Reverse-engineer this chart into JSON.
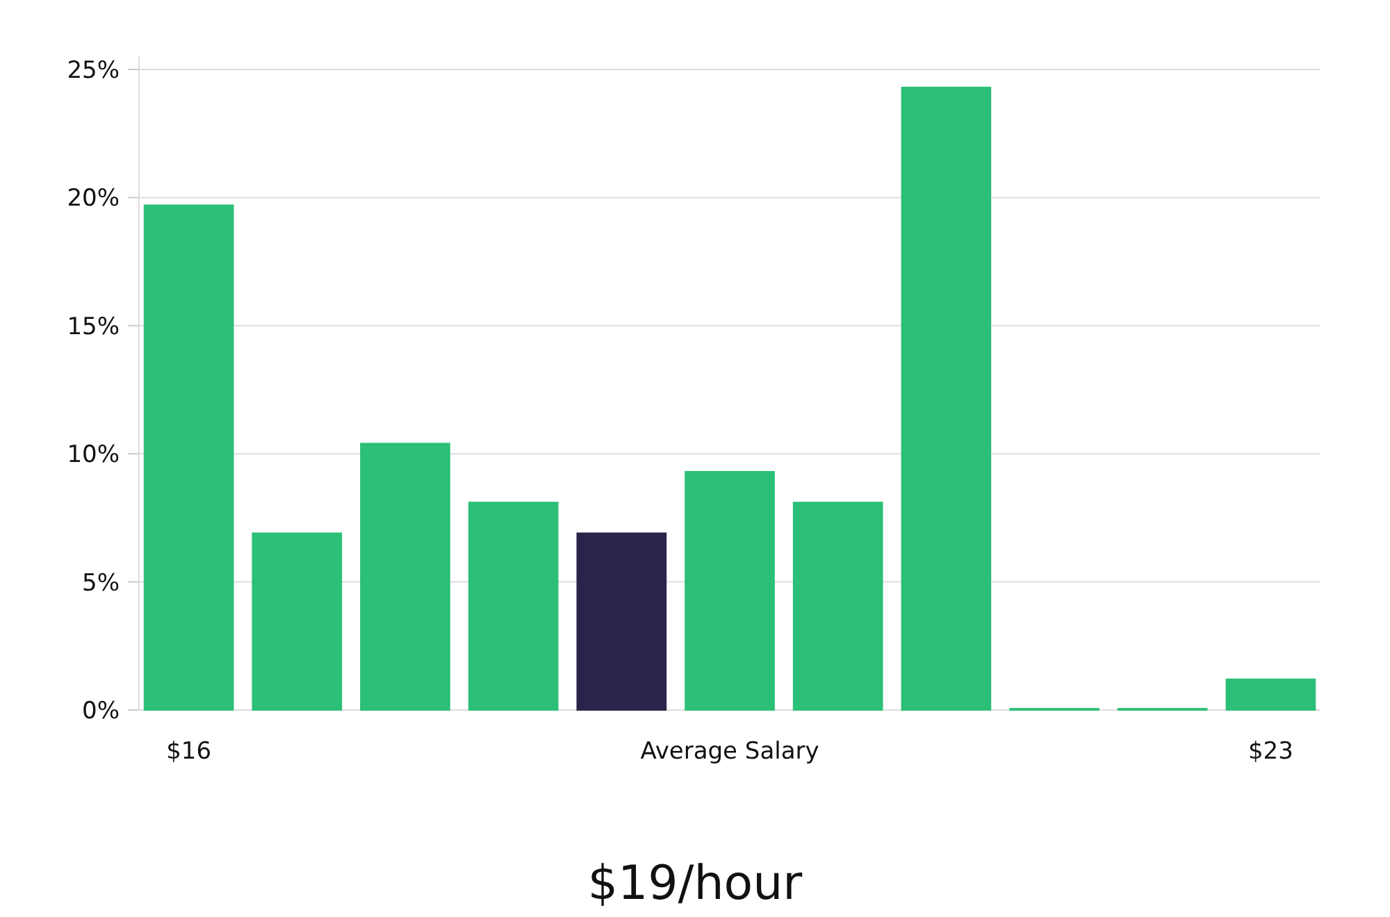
{
  "chart_data": {
    "type": "bar",
    "title": "$19/hour",
    "categories": [
      "$16",
      null,
      null,
      null,
      null,
      "Average Salary",
      null,
      null,
      null,
      null,
      "$23"
    ],
    "values": [
      19.7,
      6.9,
      10.4,
      8.1,
      6.9,
      9.3,
      8.1,
      24.3,
      0.05,
      0.05,
      1.2
    ],
    "colors": [
      "#2bbf77",
      "#2bbf77",
      "#2bbf77",
      "#2bbf77",
      "#29254a",
      "#2bbf77",
      "#2bbf77",
      "#2bbf77",
      "#2bbf77",
      "#2bbf77",
      "#2bbf77"
    ],
    "ylim": [
      0,
      25
    ],
    "yticks": [
      {
        "value": 0,
        "label": "0%"
      },
      {
        "value": 5,
        "label": "5%"
      },
      {
        "value": 10,
        "label": "10%"
      },
      {
        "value": 15,
        "label": "15%"
      },
      {
        "value": 20,
        "label": "20%"
      },
      {
        "value": 25,
        "label": "25%"
      }
    ],
    "grid": "y"
  }
}
